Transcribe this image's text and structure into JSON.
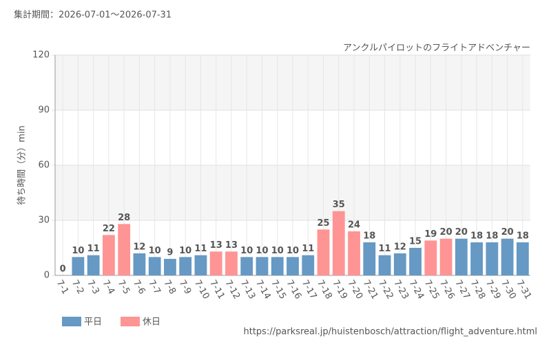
{
  "chart_data": {
    "type": "bar",
    "period": "集計期間：2026-07-01～2026-07-31",
    "subtitle": "アンクルパイロットのフライトアドベンチャー",
    "y_label": "待ち時間（分）min",
    "source": "https://parksreal.jp/huistenbosch/attraction/flight_adventure.html",
    "categories": [
      "7-1",
      "7-2",
      "7-3",
      "7-4",
      "7-5",
      "7-6",
      "7-7",
      "7-8",
      "7-9",
      "7-10",
      "7-11",
      "7-12",
      "7-13",
      "7-14",
      "7-15",
      "7-16",
      "7-17",
      "7-18",
      "7-19",
      "7-20",
      "7-21",
      "7-22",
      "7-23",
      "7-24",
      "7-25",
      "7-26",
      "7-27",
      "7-28",
      "7-29",
      "7-30",
      "7-31"
    ],
    "series": [
      {
        "name": "平日",
        "color": "#6699c4",
        "label_color": "#4a7fb0",
        "values": [
          0,
          10,
          11,
          null,
          null,
          12,
          10,
          9,
          10,
          11,
          null,
          null,
          10,
          10,
          10,
          10,
          11,
          null,
          null,
          null,
          18,
          11,
          12,
          15,
          null,
          null,
          20,
          18,
          18,
          20,
          18
        ]
      },
      {
        "name": "休日",
        "color": "#ff9494",
        "label_color": "#f07878",
        "values": [
          null,
          null,
          null,
          22,
          28,
          null,
          null,
          null,
          null,
          null,
          13,
          13,
          null,
          null,
          null,
          null,
          null,
          25,
          35,
          24,
          null,
          null,
          null,
          null,
          19,
          20,
          null,
          null,
          null,
          null,
          null
        ]
      }
    ],
    "ylim": [
      0,
      120
    ],
    "yticks": [
      0,
      30,
      60,
      90,
      120
    ],
    "grid": true
  }
}
